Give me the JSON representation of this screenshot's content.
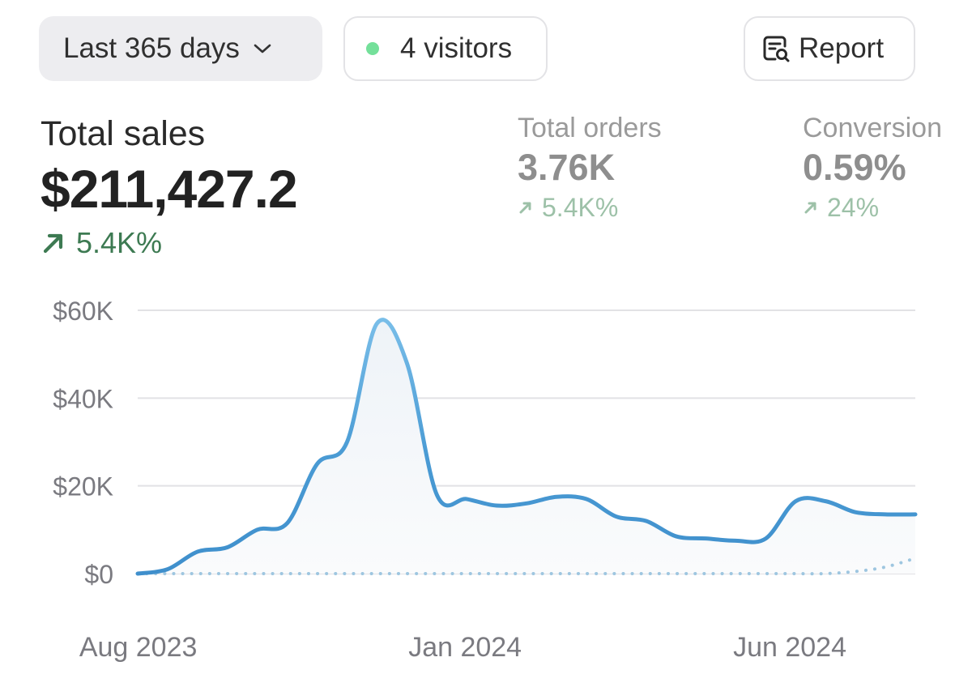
{
  "toolbar": {
    "range_label": "Last 365 days",
    "visitors_label": "4 visitors",
    "report_label": "Report"
  },
  "metrics": {
    "total_sales": {
      "label": "Total sales",
      "value": "$211,427.2",
      "change": "5.4K%"
    },
    "total_orders": {
      "label": "Total orders",
      "value": "3.76K",
      "change": "5.4K%"
    },
    "conversion": {
      "label": "Conversion",
      "value": "0.59%",
      "change": "24%"
    }
  },
  "colors": {
    "accent_line": "#4a9bd4",
    "compare_line": "#9ec6e0",
    "positive_change": "#3d7a52",
    "positive_change_muted": "#9dc1a8",
    "live_dot": "#74e09a"
  },
  "icons": {
    "range_dropdown": "chevron-down-icon",
    "live": "live-dot-icon",
    "report": "report-search-icon",
    "change": "arrow-up-right-icon"
  },
  "chart_data": {
    "type": "line",
    "xlabel": "",
    "ylabel": "",
    "ylim": [
      0,
      60000
    ],
    "y_ticks": [
      {
        "value": 0,
        "label": "$0"
      },
      {
        "value": 20000,
        "label": "$20K"
      },
      {
        "value": 40000,
        "label": "$40K"
      },
      {
        "value": 60000,
        "label": "$60K"
      }
    ],
    "x_ticks": [
      {
        "x": "2023-08",
        "label": "Aug 2023"
      },
      {
        "x": "2024-01",
        "label": "Jan 2024"
      },
      {
        "x": "2024-06",
        "label": "Jun 2024"
      }
    ],
    "x": [
      "2023-07-31",
      "2023-08-14",
      "2023-08-28",
      "2023-09-11",
      "2023-09-25",
      "2023-10-09",
      "2023-10-23",
      "2023-11-06",
      "2023-11-20",
      "2023-12-04",
      "2023-12-18",
      "2024-01-01",
      "2024-01-15",
      "2024-01-29",
      "2024-02-12",
      "2024-02-26",
      "2024-03-11",
      "2024-03-25",
      "2024-04-08",
      "2024-04-22",
      "2024-05-06",
      "2024-05-20",
      "2024-06-03",
      "2024-06-17",
      "2024-07-01",
      "2024-07-15",
      "2024-07-29"
    ],
    "series": [
      {
        "values": [
          0,
          1000,
          5000,
          6000,
          10000,
          11500,
          25000,
          30000,
          57000,
          48000,
          18000,
          17000,
          15500,
          16000,
          17500,
          17000,
          13000,
          12000,
          8500,
          8000,
          7500,
          8000,
          16500,
          16500,
          14000,
          13500,
          13500
        ],
        "style": "solid"
      },
      {
        "values": [
          0,
          0,
          0,
          0,
          0,
          0,
          0,
          0,
          0,
          0,
          0,
          0,
          0,
          0,
          0,
          0,
          0,
          0,
          0,
          0,
          0,
          0,
          0,
          0,
          500,
          1500,
          3500
        ],
        "style": "dotted"
      }
    ],
    "grid": true,
    "legend": "none"
  }
}
